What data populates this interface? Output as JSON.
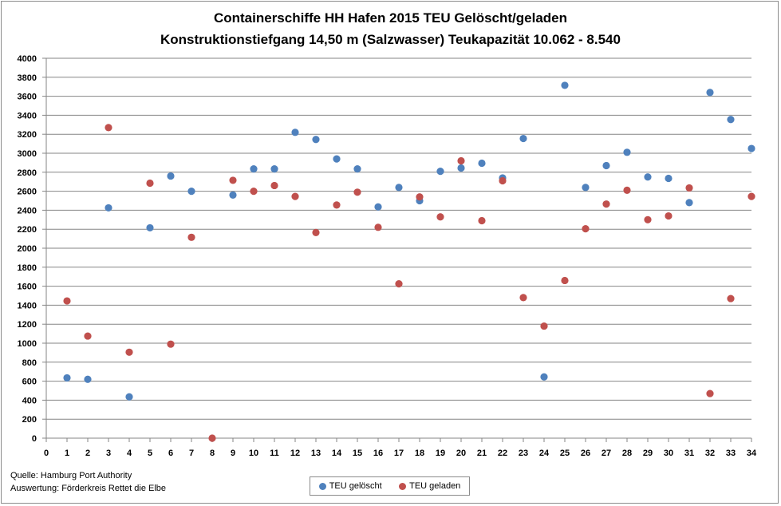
{
  "chart_data": {
    "type": "scatter",
    "title": "Containerschiffe HH Hafen 2015 TEU Gelöscht/geladen",
    "subtitle": "Konstruktionstiefgang 14,50 m (Salzwasser)  Teukapazität   10.062 - 8.540",
    "xlim": [
      0,
      34
    ],
    "ylim": [
      0,
      4000
    ],
    "x_ticks": [
      0,
      1,
      2,
      3,
      4,
      5,
      6,
      7,
      8,
      9,
      10,
      11,
      12,
      13,
      14,
      15,
      16,
      17,
      18,
      19,
      20,
      21,
      22,
      23,
      24,
      25,
      26,
      27,
      28,
      29,
      30,
      31,
      32,
      33,
      34
    ],
    "y_ticks": [
      0,
      200,
      400,
      600,
      800,
      1000,
      1200,
      1400,
      1600,
      1800,
      2000,
      2200,
      2400,
      2600,
      2800,
      3000,
      3200,
      3400,
      3600,
      3800,
      4000
    ],
    "grid": "horizontal",
    "legend_position": "bottom",
    "series": [
      {
        "name": "TEU gelöscht",
        "color": "#4f81bd",
        "x": [
          1,
          2,
          3,
          4,
          5,
          6,
          7,
          9,
          10,
          11,
          12,
          13,
          14,
          15,
          16,
          17,
          18,
          19,
          20,
          21,
          22,
          23,
          24,
          25,
          26,
          27,
          28,
          29,
          30,
          31,
          32,
          33,
          34
        ],
        "y": [
          635,
          620,
          2425,
          435,
          2215,
          2760,
          2600,
          2560,
          2835,
          2835,
          3220,
          3145,
          2940,
          2835,
          2435,
          2640,
          2500,
          2810,
          2845,
          2895,
          2740,
          3155,
          645,
          3715,
          2640,
          2870,
          3010,
          2750,
          2735,
          2480,
          3640,
          3355,
          3050
        ]
      },
      {
        "name": "TEU geladen",
        "color": "#c0504d",
        "x": [
          1,
          2,
          3,
          4,
          5,
          6,
          7,
          8,
          9,
          10,
          11,
          12,
          13,
          14,
          15,
          16,
          17,
          18,
          19,
          20,
          21,
          22,
          23,
          24,
          25,
          26,
          27,
          28,
          29,
          30,
          31,
          32,
          33,
          34
        ],
        "y": [
          1445,
          1075,
          3270,
          905,
          2685,
          990,
          2115,
          0,
          2715,
          2600,
          2660,
          2545,
          2165,
          2455,
          2590,
          2220,
          1625,
          2540,
          2330,
          2920,
          2290,
          2710,
          1480,
          1180,
          1660,
          2205,
          2465,
          2610,
          2300,
          2340,
          2635,
          470,
          1470,
          2545
        ]
      }
    ]
  },
  "footer": {
    "source": "Quelle: Hamburg Port Authority",
    "analysis": "Auswertung: Förderkreis Rettet die Elbe"
  }
}
